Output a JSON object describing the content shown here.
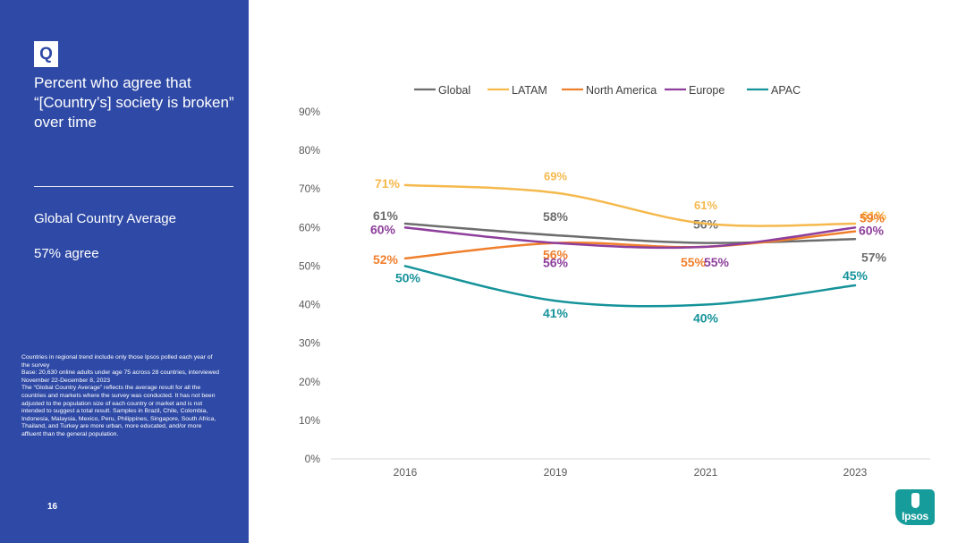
{
  "sidebar": {
    "badge": "Q",
    "title": "Percent who agree that “[Country’s] society is broken” over time",
    "subtitle": "Global Country Average",
    "agree_text": "57% agree",
    "notes": [
      "Countries in regional trend include only those Ipsos polled each year of the survey",
      "Base: 20,630 online adults under age 75 across 28 countries, interviewed November 22-December 8, 2023",
      "The “Global Country Average” reflects the average result for all the countries and markets where the survey was conducted. It has not been adjusted to the population size of each country or market and is not intended to suggest a total result. Samples in Brazil, Chile, Colombia, Indonesia, Malaysia, Mexico, Peru, Philippines, Singapore, South Africa, Thailand, and Turkey are more urban, more educated, and/or more affluent than the general population."
    ],
    "page_number": "16"
  },
  "logo": {
    "text": "Ipsos",
    "color": "#169c9a"
  },
  "chart_data": {
    "type": "line",
    "title": "Percent who agree that “[Country’s] society is broken” over time",
    "x": [
      "2016",
      "2019",
      "2021",
      "2023"
    ],
    "ylim": [
      0,
      90
    ],
    "yticks": [
      0,
      10,
      20,
      30,
      40,
      50,
      60,
      70,
      80,
      90
    ],
    "ytick_suffix": "%",
    "grid": false,
    "legend_position": "top",
    "series": [
      {
        "name": "Global",
        "color": "#6d6d6d",
        "values": [
          61,
          58,
          56,
          57
        ],
        "labels": [
          "61%",
          "58%",
          "56%",
          "57%"
        ]
      },
      {
        "name": "LATAM",
        "color": "#f5b94d",
        "values": [
          71,
          69,
          61,
          61
        ],
        "labels": [
          "71%",
          "69%",
          "61%",
          "61%"
        ]
      },
      {
        "name": "North America",
        "color": "#f07f2c",
        "values": [
          52,
          56,
          55,
          59
        ],
        "labels": [
          "52%",
          "56%",
          "55%",
          "59%"
        ]
      },
      {
        "name": "Europe",
        "color": "#8e3e9c",
        "values": [
          60,
          56,
          55,
          60
        ],
        "labels": [
          "60%",
          "56%",
          "55%",
          "60%"
        ]
      },
      {
        "name": "APAC",
        "color": "#15939a",
        "values": [
          50,
          41,
          40,
          45
        ],
        "labels": [
          "50%",
          "41%",
          "40%",
          "45%"
        ]
      }
    ]
  }
}
